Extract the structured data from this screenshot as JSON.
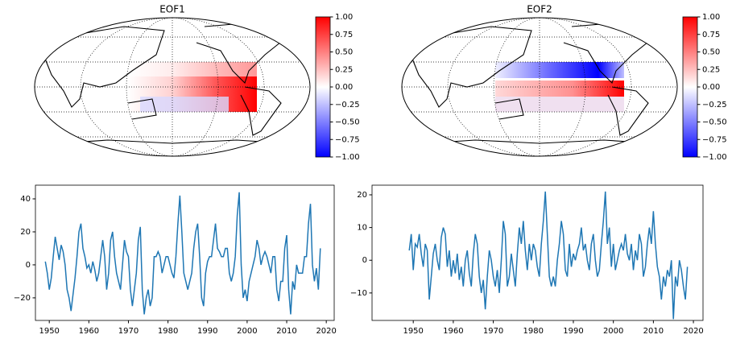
{
  "chart_data": [
    {
      "type": "map",
      "title": "EOF1",
      "clim": [
        -1,
        1
      ],
      "cticks": [
        {
          "value": -1,
          "label": "−1.00"
        },
        {
          "value": -0.75,
          "label": "−0.75"
        },
        {
          "value": -0.5,
          "label": "−0.50"
        },
        {
          "value": -0.25,
          "label": "−0.25"
        },
        {
          "value": 0,
          "label": "0.00"
        },
        {
          "value": 0.25,
          "label": "0.25"
        },
        {
          "value": 0.5,
          "label": "0.50"
        },
        {
          "value": 0.75,
          "label": "0.75"
        },
        {
          "value": 1,
          "label": "1.00"
        }
      ],
      "cmap": [
        "#0000ff",
        "#ffffff",
        "#ff0000"
      ]
    },
    {
      "type": "map",
      "title": "EOF2",
      "clim": [
        -1,
        1
      ],
      "cticks": [
        {
          "value": -1,
          "label": "−1.00"
        },
        {
          "value": -0.75,
          "label": "−0.75"
        },
        {
          "value": -0.5,
          "label": "−0.50"
        },
        {
          "value": -0.25,
          "label": "−0.25"
        },
        {
          "value": 0,
          "label": "0.00"
        },
        {
          "value": 0.25,
          "label": "0.25"
        },
        {
          "value": 0.5,
          "label": "0.50"
        },
        {
          "value": 0.75,
          "label": "0.75"
        },
        {
          "value": 1,
          "label": "1.00"
        }
      ],
      "cmap": [
        "#0000ff",
        "#ffffff",
        "#ff0000"
      ]
    },
    {
      "type": "line",
      "x": [
        1949,
        1949.5,
        1950,
        1950.5,
        1951,
        1951.5,
        1952,
        1952.5,
        1953,
        1953.5,
        1954,
        1954.5,
        1955,
        1955.5,
        1956,
        1956.5,
        1957,
        1957.5,
        1958,
        1958.5,
        1959,
        1959.5,
        1960,
        1960.5,
        1961,
        1961.5,
        1962,
        1962.5,
        1963,
        1963.5,
        1964,
        1964.5,
        1965,
        1965.5,
        1966,
        1966.5,
        1967,
        1967.5,
        1968,
        1968.5,
        1969,
        1969.5,
        1970,
        1970.5,
        1971,
        1971.5,
        1972,
        1972.5,
        1973,
        1973.5,
        1974,
        1974.5,
        1975,
        1975.5,
        1976,
        1976.5,
        1977,
        1977.5,
        1978,
        1978.5,
        1979,
        1979.5,
        1980,
        1980.5,
        1981,
        1981.5,
        1982,
        1982.5,
        1983,
        1983.5,
        1984,
        1984.5,
        1985,
        1985.5,
        1986,
        1986.5,
        1987,
        1987.5,
        1988,
        1988.5,
        1989,
        1989.5,
        1990,
        1990.5,
        1991,
        1991.5,
        1992,
        1992.5,
        1993,
        1993.5,
        1994,
        1994.5,
        1995,
        1995.5,
        1996,
        1996.5,
        1997,
        1997.5,
        1998,
        1998.5,
        1999,
        1999.5,
        2000,
        2000.5,
        2001,
        2001.5,
        2002,
        2002.5,
        2003,
        2003.5,
        2004,
        2004.5,
        2005,
        2005.5,
        2006,
        2006.5,
        2007,
        2007.5,
        2008,
        2008.5,
        2009,
        2009.5,
        2010,
        2010.5,
        2011,
        2011.5,
        2012,
        2012.5,
        2013,
        2013.5,
        2014,
        2014.5,
        2015,
        2015.5,
        2016,
        2016.5,
        2017,
        2017.5,
        2018,
        2018.5
      ],
      "series": [
        {
          "color": "#1f77b4",
          "values": [
            2,
            -5,
            -15,
            -8,
            5,
            17,
            10,
            3,
            12,
            8,
            0,
            -15,
            -20,
            -28,
            -18,
            -8,
            5,
            20,
            25,
            10,
            5,
            -2,
            0,
            -5,
            2,
            -3,
            -10,
            -5,
            5,
            15,
            5,
            -15,
            -5,
            15,
            20,
            5,
            -5,
            -10,
            -15,
            0,
            15,
            8,
            5,
            -15,
            -25,
            -15,
            -5,
            15,
            23,
            -15,
            -30,
            -20,
            -15,
            -25,
            -20,
            5,
            5,
            8,
            5,
            -5,
            0,
            5,
            5,
            0,
            -5,
            -8,
            5,
            25,
            42,
            20,
            -5,
            -10,
            -15,
            -10,
            -5,
            10,
            20,
            25,
            5,
            -20,
            -25,
            -5,
            2,
            5,
            5,
            15,
            25,
            10,
            8,
            5,
            5,
            10,
            10,
            -5,
            -10,
            -5,
            5,
            30,
            44,
            0,
            -20,
            -15,
            -22,
            -10,
            -5,
            0,
            5,
            15,
            10,
            0,
            5,
            8,
            5,
            0,
            -5,
            5,
            5,
            -15,
            -22,
            -10,
            -10,
            10,
            18,
            -15,
            -30,
            -10,
            -15,
            0,
            -5,
            -5,
            -5,
            5,
            5,
            25,
            37,
            0,
            -10,
            -2,
            -15,
            10
          ]
        }
      ],
      "xlim": [
        1946.5,
        2022
      ],
      "ylim": [
        -33.7,
        48.3
      ],
      "xticks": [
        1950,
        1960,
        1970,
        1980,
        1990,
        2000,
        2010,
        2020
      ],
      "yticks": [
        {
          "value": -20,
          "label": "−20"
        },
        0,
        20,
        40
      ]
    },
    {
      "type": "line",
      "x": [
        1949,
        1949.5,
        1950,
        1950.5,
        1951,
        1951.5,
        1952,
        1952.5,
        1953,
        1953.5,
        1954,
        1954.5,
        1955,
        1955.5,
        1956,
        1956.5,
        1957,
        1957.5,
        1958,
        1958.5,
        1959,
        1959.5,
        1960,
        1960.5,
        1961,
        1961.5,
        1962,
        1962.5,
        1963,
        1963.5,
        1964,
        1964.5,
        1965,
        1965.5,
        1966,
        1966.5,
        1967,
        1967.5,
        1968,
        1968.5,
        1969,
        1969.5,
        1970,
        1970.5,
        1971,
        1971.5,
        1972,
        1972.5,
        1973,
        1973.5,
        1974,
        1974.5,
        1975,
        1975.5,
        1976,
        1976.5,
        1977,
        1977.5,
        1978,
        1978.5,
        1979,
        1979.5,
        1980,
        1980.5,
        1981,
        1981.5,
        1982,
        1982.5,
        1983,
        1983.5,
        1984,
        1984.5,
        1985,
        1985.5,
        1986,
        1986.5,
        1987,
        1987.5,
        1988,
        1988.5,
        1989,
        1989.5,
        1990,
        1990.5,
        1991,
        1991.5,
        1992,
        1992.5,
        1993,
        1993.5,
        1994,
        1994.5,
        1995,
        1995.5,
        1996,
        1996.5,
        1997,
        1997.5,
        1998,
        1998.5,
        1999,
        1999.5,
        2000,
        2000.5,
        2001,
        2001.5,
        2002,
        2002.5,
        2003,
        2003.5,
        2004,
        2004.5,
        2005,
        2005.5,
        2006,
        2006.5,
        2007,
        2007.5,
        2008,
        2008.5,
        2009,
        2009.5,
        2010,
        2010.5,
        2011,
        2011.5,
        2012,
        2012.5,
        2013,
        2013.5,
        2014,
        2014.5,
        2015,
        2015.5,
        2016,
        2016.5,
        2017,
        2017.5,
        2018,
        2018.5
      ],
      "series": [
        {
          "color": "#1f77b4",
          "values": [
            3,
            8,
            -3,
            5,
            4,
            8,
            2,
            -2,
            5,
            3,
            -12,
            -5,
            2,
            5,
            0,
            -3,
            7,
            10,
            8,
            -2,
            3,
            -5,
            0,
            -4,
            2,
            -6,
            -2,
            -8,
            0,
            3,
            -4,
            -8,
            2,
            8,
            5,
            -5,
            -10,
            -6,
            -15,
            -5,
            3,
            0,
            -5,
            -8,
            -3,
            -10,
            0,
            12,
            8,
            -8,
            -5,
            2,
            -3,
            -8,
            2,
            10,
            5,
            12,
            3,
            -3,
            5,
            0,
            5,
            3,
            -2,
            -5,
            5,
            12,
            21,
            8,
            -5,
            -8,
            -5,
            -8,
            0,
            5,
            12,
            8,
            -3,
            -5,
            5,
            -2,
            2,
            0,
            3,
            5,
            10,
            3,
            5,
            0,
            -3,
            5,
            8,
            0,
            -5,
            -3,
            5,
            12,
            21,
            5,
            10,
            -2,
            5,
            -3,
            0,
            3,
            5,
            3,
            8,
            2,
            0,
            5,
            -3,
            3,
            0,
            8,
            5,
            -5,
            -2,
            5,
            10,
            5,
            15,
            5,
            -2,
            -5,
            -12,
            -5,
            -8,
            -3,
            -5,
            0,
            -18,
            -5,
            -8,
            0,
            -3,
            -8,
            -12,
            -2
          ]
        }
      ],
      "xlim": [
        1939.7,
        2022.4
      ],
      "ylim": [
        -18.4,
        22.95
      ],
      "xticks": [
        1950,
        1960,
        1970,
        1980,
        1990,
        2000,
        2010,
        2020
      ],
      "yticks": [
        {
          "value": -10,
          "label": "−10"
        },
        0,
        10,
        20
      ]
    }
  ]
}
